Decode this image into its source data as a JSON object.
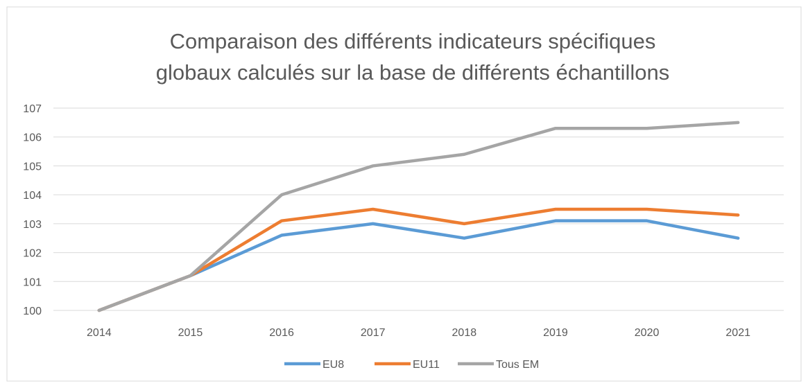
{
  "chart_data": {
    "type": "line",
    "title": "Comparaison des différents indicateurs spécifiques",
    "subtitle": "globaux calculés sur la base de différents échantillons",
    "categories": [
      "2014",
      "2015",
      "2016",
      "2017",
      "2018",
      "2019",
      "2020",
      "2021"
    ],
    "series": [
      {
        "name": "EU8",
        "color": "#5b9bd5",
        "values": [
          100,
          101.2,
          102.6,
          103,
          102.5,
          103.1,
          103.1,
          102.5
        ]
      },
      {
        "name": "EU11",
        "color": "#ed7d31",
        "values": [
          100,
          101.2,
          103.1,
          103.5,
          103,
          103.5,
          103.5,
          103.3
        ]
      },
      {
        "name": "Tous EM",
        "color": "#a5a5a5",
        "values": [
          100,
          101.2,
          104,
          105,
          105.4,
          106.3,
          106.3,
          106.5
        ]
      }
    ],
    "ylim": [
      100,
      107
    ],
    "yticks": [
      100,
      101,
      102,
      103,
      104,
      105,
      106,
      107
    ],
    "grid": true,
    "legend": "bottom"
  }
}
